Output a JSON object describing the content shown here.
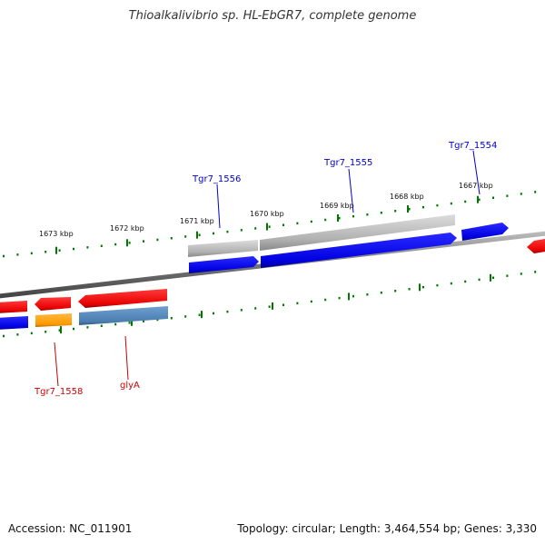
{
  "title": "Thioalkalivibrio sp. HL-EbGR7, complete genome",
  "footer": {
    "accession": "Accession: NC_011901",
    "summary": "Topology: circular; Length: 3,464,554 bp; Genes: 3,330"
  },
  "ticks": [
    "1673 kbp",
    "1672 kbp",
    "1671 kbp",
    "1670 kbp",
    "1669 kbp",
    "1668 kbp",
    "1667 kbp"
  ],
  "gene_labels": [
    "Tgr7_1556",
    "Tgr7_1555",
    "Tgr7_1554",
    "Tgr7_1558",
    "glyA"
  ],
  "colors": {
    "forward_label": "#0000cc",
    "reverse_label": "#cc0000",
    "blue_feature": "#0000ee",
    "red_feature": "#ee0000",
    "gray_feature": "#b0b0b0",
    "orange_feature": "#ff9900",
    "steel_feature": "#4a7fb0",
    "tick_green": "#007700",
    "backbone": "#7a7a7a"
  }
}
